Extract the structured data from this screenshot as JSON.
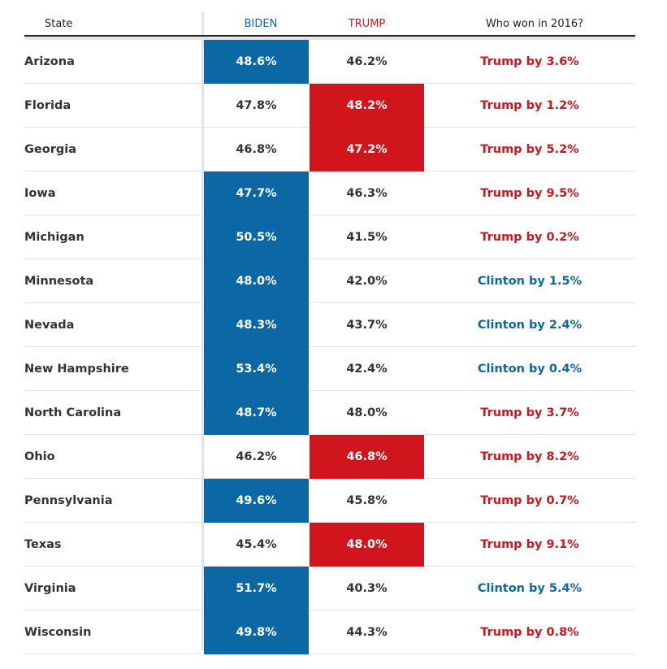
{
  "colors": {
    "biden": "#0c67a5",
    "trump": "#d1151d",
    "text": "#333333"
  },
  "chart_data": {
    "type": "table",
    "columns": [
      "State",
      "BIDEN",
      "TRUMP",
      "Who won in 2016?"
    ],
    "rows": [
      {
        "state": "Arizona",
        "biden": "48.6%",
        "trump": "46.2%",
        "won2016": "Trump by 3.6%",
        "leader": "biden",
        "winner2016": "trump"
      },
      {
        "state": "Florida",
        "biden": "47.8%",
        "trump": "48.2%",
        "won2016": "Trump by 1.2%",
        "leader": "trump",
        "winner2016": "trump"
      },
      {
        "state": "Georgia",
        "biden": "46.8%",
        "trump": "47.2%",
        "won2016": "Trump by 5.2%",
        "leader": "trump",
        "winner2016": "trump"
      },
      {
        "state": "Iowa",
        "biden": "47.7%",
        "trump": "46.3%",
        "won2016": "Trump by 9.5%",
        "leader": "biden",
        "winner2016": "trump"
      },
      {
        "state": "Michigan",
        "biden": "50.5%",
        "trump": "41.5%",
        "won2016": "Trump by 0.2%",
        "leader": "biden",
        "winner2016": "trump"
      },
      {
        "state": "Minnesota",
        "biden": "48.0%",
        "trump": "42.0%",
        "won2016": "Clinton by 1.5%",
        "leader": "biden",
        "winner2016": "clinton"
      },
      {
        "state": "Nevada",
        "biden": "48.3%",
        "trump": "43.7%",
        "won2016": "Clinton by 2.4%",
        "leader": "biden",
        "winner2016": "clinton"
      },
      {
        "state": "New Hampshire",
        "biden": "53.4%",
        "trump": "42.4%",
        "won2016": "Clinton by 0.4%",
        "leader": "biden",
        "winner2016": "clinton"
      },
      {
        "state": "North Carolina",
        "biden": "48.7%",
        "trump": "48.0%",
        "won2016": "Trump by 3.7%",
        "leader": "biden",
        "winner2016": "trump"
      },
      {
        "state": "Ohio",
        "biden": "46.2%",
        "trump": "46.8%",
        "won2016": "Trump by 8.2%",
        "leader": "trump",
        "winner2016": "trump"
      },
      {
        "state": "Pennsylvania",
        "biden": "49.6%",
        "trump": "45.8%",
        "won2016": "Trump by 0.7%",
        "leader": "biden",
        "winner2016": "trump"
      },
      {
        "state": "Texas",
        "biden": "45.4%",
        "trump": "48.0%",
        "won2016": "Trump by 9.1%",
        "leader": "trump",
        "winner2016": "trump"
      },
      {
        "state": "Virginia",
        "biden": "51.7%",
        "trump": "40.3%",
        "won2016": "Clinton by 5.4%",
        "leader": "biden",
        "winner2016": "clinton"
      },
      {
        "state": "Wisconsin",
        "biden": "49.8%",
        "trump": "44.3%",
        "won2016": "Trump by 0.8%",
        "leader": "biden",
        "winner2016": "trump"
      }
    ]
  }
}
